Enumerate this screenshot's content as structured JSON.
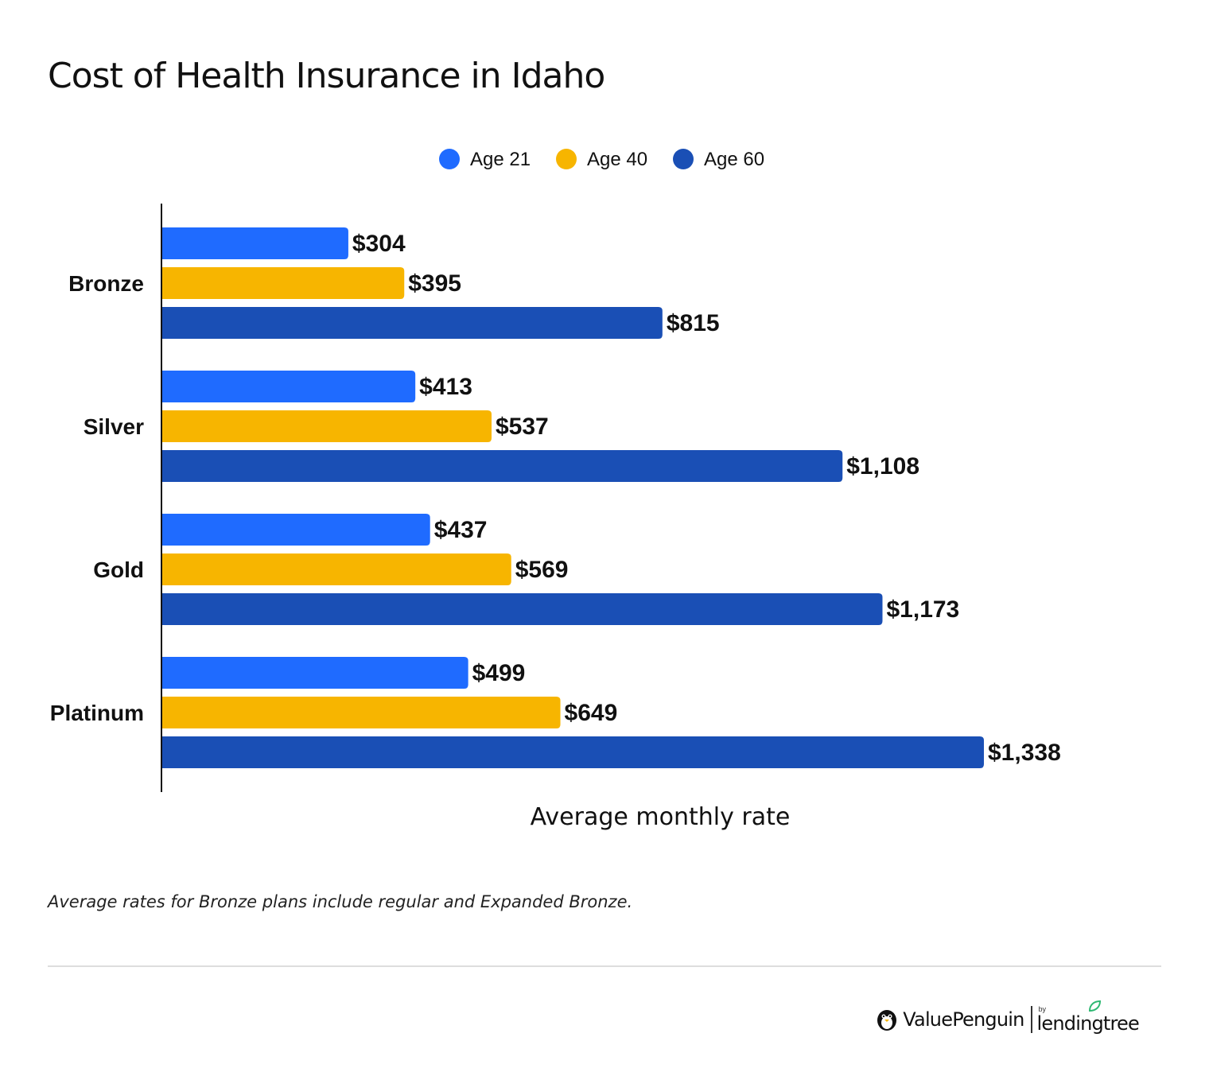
{
  "title": "Cost of Health Insurance in Idaho",
  "note": "Average rates for Bronze plans include regular and Expanded Bronze.",
  "brand": {
    "name": "ValuePenguin",
    "by": "by",
    "partner": "lendingtree"
  },
  "colors": {
    "age21": "#1f6bff",
    "age40": "#f7b500",
    "age60": "#1a4fb5",
    "axis": "#111111",
    "divider": "#dddddd",
    "leaf": "#2eb872"
  },
  "chart_data": {
    "type": "bar",
    "orientation": "horizontal",
    "categories": [
      "Bronze",
      "Silver",
      "Gold",
      "Platinum"
    ],
    "series": [
      {
        "name": "Age 21",
        "color": "#1f6bff",
        "values": [
          304,
          413,
          437,
          499
        ],
        "labels": [
          "$304",
          "$413",
          "$437",
          "$499"
        ]
      },
      {
        "name": "Age 40",
        "color": "#f7b500",
        "values": [
          395,
          537,
          569,
          649
        ],
        "labels": [
          "$395",
          "$537",
          "$569",
          "$649"
        ]
      },
      {
        "name": "Age 60",
        "color": "#1a4fb5",
        "values": [
          815,
          1108,
          1173,
          1338
        ],
        "labels": [
          "$815",
          "$1,108",
          "$1,173",
          "$1,338"
        ]
      }
    ],
    "xlabel": "Average monthly rate",
    "ylabel": "",
    "xlim": [
      0,
      1338
    ],
    "grid": false,
    "legend": "top-center"
  }
}
